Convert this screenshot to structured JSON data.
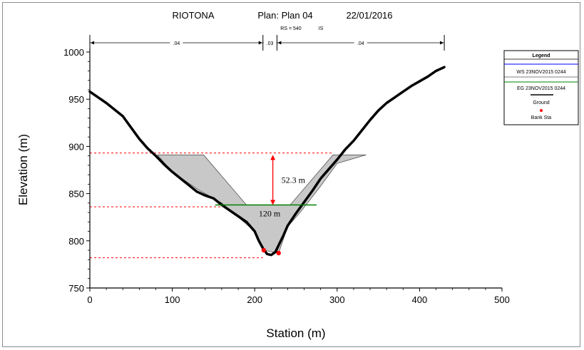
{
  "header": {
    "project": "RIOTONA",
    "plan": "Plan: Plan 04",
    "date": "22/01/2016",
    "rs_label": "RS = 540",
    "is_label": "IS"
  },
  "chart_data": {
    "type": "line",
    "xlabel": "Station (m)",
    "ylabel": "Elevation (m)",
    "xlim": [
      0,
      500
    ],
    "ylim": [
      750,
      1000
    ],
    "xticks": [
      0,
      100,
      200,
      300,
      400,
      500
    ],
    "yticks": [
      750,
      800,
      850,
      900,
      950,
      1000
    ],
    "grid": false,
    "manning": [
      {
        "label": ".04",
        "x0": 0,
        "x1": 210
      },
      {
        "label": ".03",
        "x0": 210,
        "x1": 227
      },
      {
        "label": ".04",
        "x0": 227,
        "x1": 430
      }
    ],
    "ground": {
      "name": "Ground",
      "x": [
        0,
        10,
        20,
        30,
        40,
        50,
        60,
        70,
        80,
        90,
        100,
        110,
        120,
        130,
        140,
        150,
        160,
        170,
        180,
        190,
        200,
        205,
        210,
        215,
        220,
        225,
        230,
        235,
        240,
        250,
        260,
        270,
        280,
        290,
        300,
        310,
        320,
        330,
        340,
        350,
        360,
        370,
        380,
        390,
        400,
        410,
        420,
        430
      ],
      "y": [
        958,
        952,
        946,
        939,
        932,
        920,
        908,
        898,
        890,
        881,
        873,
        866,
        859,
        852,
        848,
        845,
        838,
        832,
        826,
        820,
        810,
        800,
        792,
        786,
        785,
        788,
        797,
        806,
        816,
        829,
        841,
        853,
        866,
        876,
        886,
        897,
        906,
        917,
        928,
        938,
        946,
        952,
        958,
        964,
        969,
        974,
        980,
        984
      ]
    },
    "bank_stations": {
      "name": "Bank Sta",
      "color": "#ff0000",
      "points": [
        [
          211,
          790
        ],
        [
          229,
          787
        ]
      ]
    },
    "ws": {
      "name": "WS 23NOV2015 0244",
      "color": "#0000ff"
    },
    "eg": {
      "name": "EG 23NOV2015 0244",
      "color": "#008000",
      "elevation": 838,
      "x0": 152,
      "x1": 275
    },
    "fill_polygon": {
      "color": "#c8c8c8",
      "points": [
        [
          82,
          891
        ],
        [
          138,
          891
        ],
        [
          190,
          838
        ],
        [
          243,
          838
        ],
        [
          295,
          891
        ],
        [
          335,
          891
        ],
        [
          300,
          882
        ],
        [
          280,
          858
        ],
        [
          255,
          830
        ],
        [
          240,
          815
        ],
        [
          229,
          787
        ],
        [
          211,
          790
        ],
        [
          200,
          810
        ],
        [
          160,
          840
        ],
        [
          130,
          855
        ],
        [
          100,
          873
        ]
      ]
    },
    "dashed_lines": {
      "color": "#ff0000",
      "lines": [
        {
          "x0": 0,
          "x1": 295,
          "y": 893
        },
        {
          "x0": 0,
          "x1": 200,
          "y": 836
        },
        {
          "x0": 0,
          "x1": 210,
          "y": 782
        }
      ]
    },
    "annotations": {
      "height_label": "52.3 m",
      "height_arrow": {
        "x": 222,
        "y_top": 891,
        "y_bottom": 838
      },
      "width_label": "120 m",
      "width_label_pos": {
        "x": 218,
        "y": 826
      }
    },
    "legend_title": "Legend",
    "legend_position": "right"
  }
}
